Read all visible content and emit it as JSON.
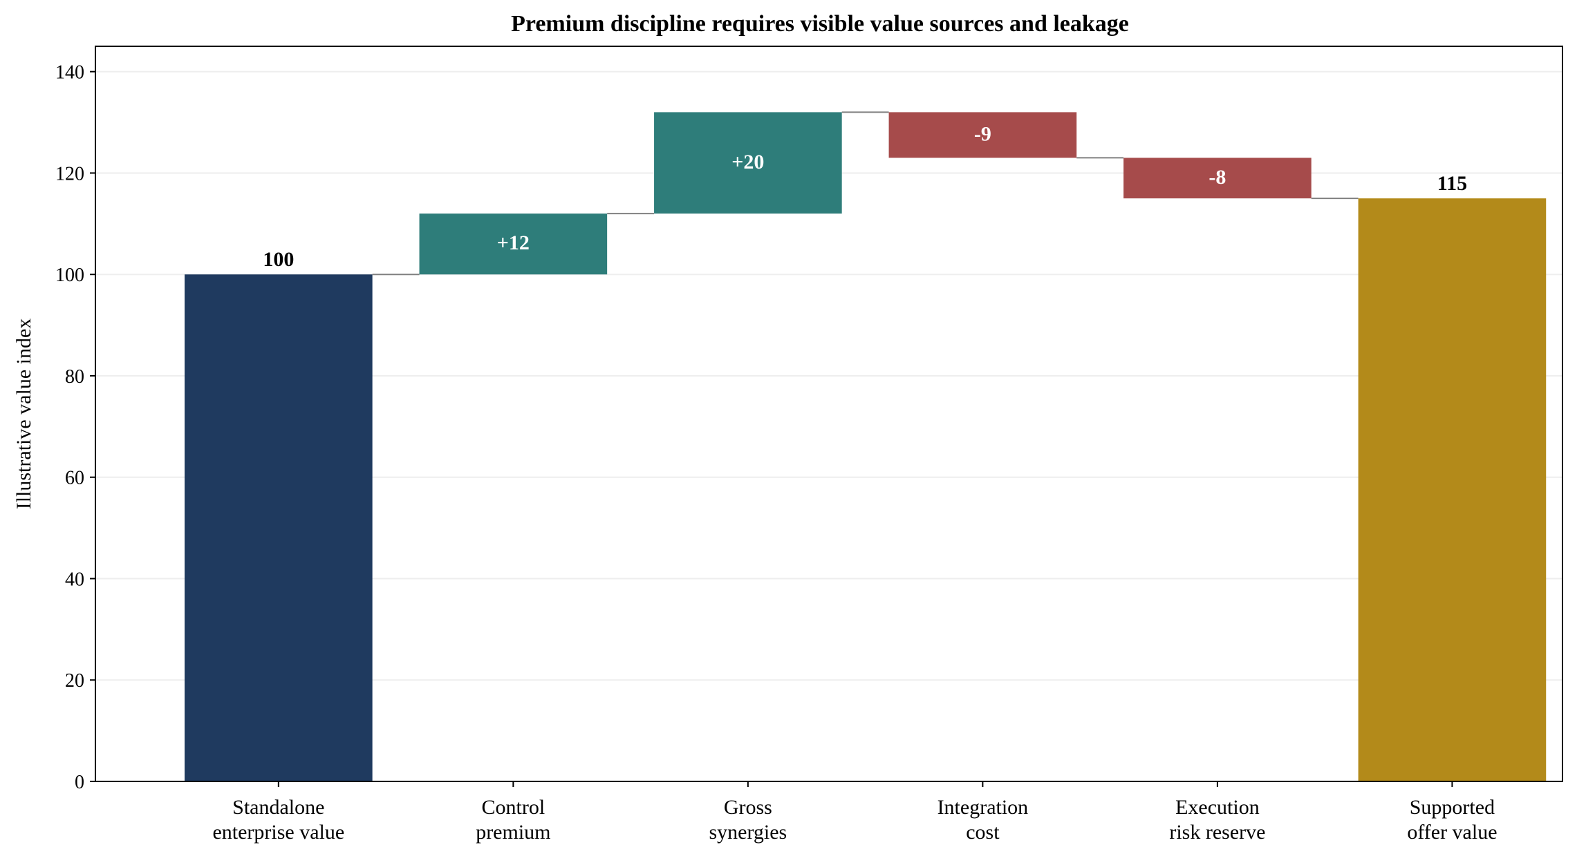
{
  "chart_data": {
    "type": "waterfall",
    "title": "Premium discipline requires visible value sources and leakage",
    "ylabel": "Illustrative value index",
    "xlabel": "",
    "ylim": [
      0,
      145
    ],
    "yticks": [
      0,
      20,
      40,
      60,
      80,
      100,
      120,
      140
    ],
    "grid": "horizontal",
    "steps": [
      {
        "category": [
          "Standalone",
          "enterprise value"
        ],
        "kind": "total",
        "value": 100,
        "label": "100",
        "color": "#1f3a5f"
      },
      {
        "category": [
          "Control",
          "premium"
        ],
        "kind": "delta",
        "value": 12,
        "label": "+12",
        "color": "#2e7d7a"
      },
      {
        "category": [
          "Gross",
          "synergies"
        ],
        "kind": "delta",
        "value": 20,
        "label": "+20",
        "color": "#2e7d7a"
      },
      {
        "category": [
          "Integration",
          "cost"
        ],
        "kind": "delta",
        "value": -9,
        "label": "-9",
        "color": "#a64b4b"
      },
      {
        "category": [
          "Execution",
          "risk reserve"
        ],
        "kind": "delta",
        "value": -8,
        "label": "-8",
        "color": "#a64b4b"
      },
      {
        "category": [
          "Supported",
          "offer value"
        ],
        "kind": "total",
        "value": 115,
        "label": "115",
        "color": "#b38a1a"
      }
    ],
    "connector_color": "#808080",
    "grid_color": "#eeeeee",
    "total_label_color": "#000000",
    "delta_label_color": "#ffffff"
  }
}
